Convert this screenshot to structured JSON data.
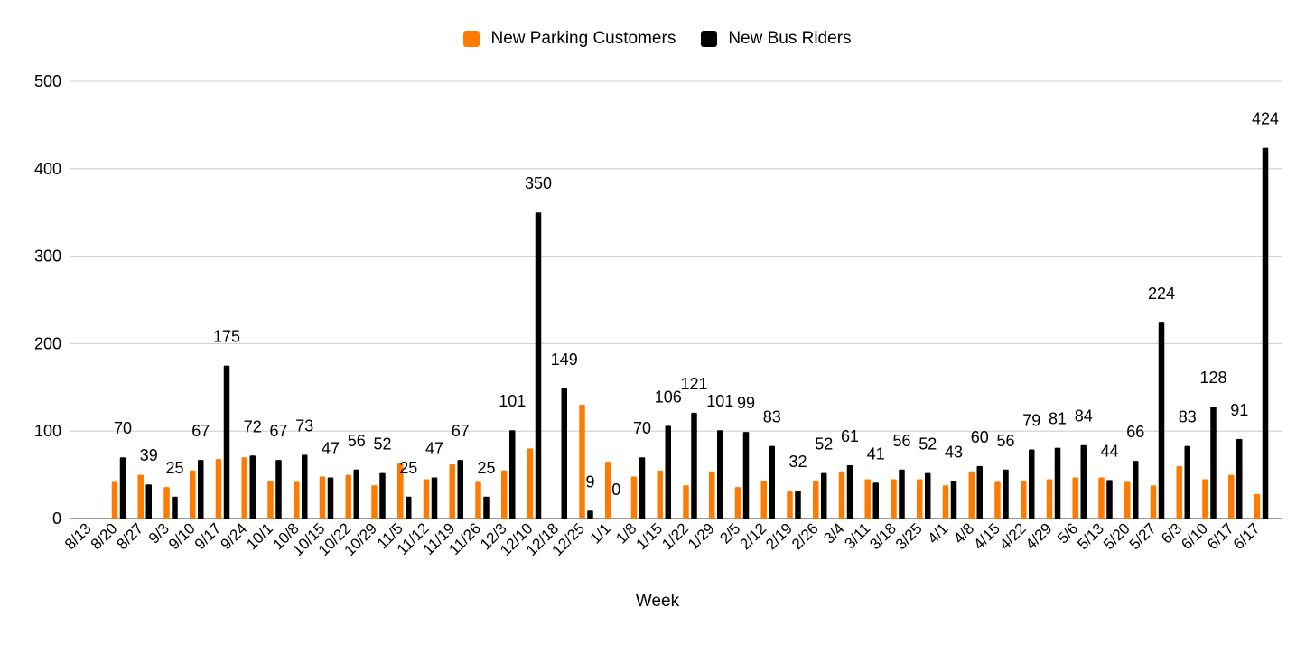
{
  "chart_data": {
    "type": "bar",
    "title": "",
    "xlabel": "Week",
    "ylabel": "",
    "ylim": [
      0,
      500
    ],
    "yticks": [
      "0",
      "100",
      "200",
      "300",
      "400",
      "500"
    ],
    "grid": true,
    "legend_position": "top-center",
    "categories": [
      "8/13",
      "8/20",
      "8/27",
      "9/3",
      "9/10",
      "9/17",
      "9/24",
      "10/1",
      "10/8",
      "10/15",
      "10/22",
      "10/29",
      "11/5",
      "11/12",
      "11/19",
      "11/26",
      "12/3",
      "12/10",
      "12/18",
      "12/25",
      "1/1",
      "1/8",
      "1/15",
      "1/22",
      "1/29",
      "2/5",
      "2/12",
      "2/19",
      "2/26",
      "3/4",
      "3/11",
      "3/18",
      "3/25",
      "4/1",
      "4/8",
      "4/15",
      "4/22",
      "4/29",
      "5/6",
      "5/13",
      "5/20",
      "5/27",
      "6/3",
      "6/10",
      "6/17",
      "6/17"
    ],
    "series": [
      {
        "name": "New Parking Customers",
        "color": "#ff7a00",
        "values": [
          null,
          42,
          50,
          36,
          55,
          68,
          70,
          43,
          42,
          48,
          50,
          38,
          63,
          45,
          62,
          42,
          55,
          80,
          null,
          130,
          65,
          48,
          55,
          38,
          54,
          36,
          43,
          31,
          43,
          54,
          45,
          45,
          45,
          38,
          54,
          42,
          43,
          45,
          47,
          47,
          42,
          38,
          60,
          45,
          50,
          28
        ]
      },
      {
        "name": "New Bus Riders",
        "color": "#000000",
        "values": [
          null,
          70,
          39,
          25,
          67,
          175,
          72,
          67,
          73,
          47,
          56,
          52,
          25,
          47,
          67,
          25,
          101,
          350,
          149,
          9,
          0,
          70,
          106,
          121,
          101,
          99,
          83,
          32,
          52,
          61,
          41,
          56,
          52,
          43,
          60,
          56,
          79,
          81,
          84,
          44,
          66,
          224,
          83,
          128,
          91,
          424
        ],
        "labels": [
          "",
          "70",
          "39",
          "25",
          "67",
          "175",
          "72",
          "67",
          "73",
          "47",
          "56",
          "52",
          "25",
          "47",
          "67",
          "25",
          "101",
          "350",
          "149",
          "9",
          "0",
          "70",
          "106",
          "121",
          "101",
          "99",
          "83",
          "32",
          "52",
          "61",
          "41",
          "56",
          "52",
          "43",
          "60",
          "56",
          "79",
          "81",
          "84",
          "44",
          "66",
          "224",
          "83",
          "128",
          "91",
          "424"
        ]
      }
    ]
  }
}
